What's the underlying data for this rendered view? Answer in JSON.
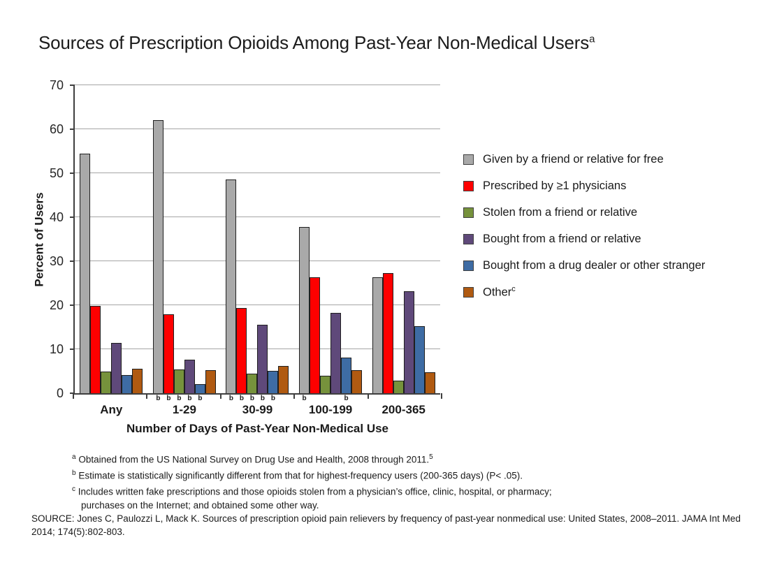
{
  "title": {
    "text": "Sources of Prescription Opioids Among Past-Year Non-Medical Users",
    "superscript": "a"
  },
  "chart_data": {
    "type": "bar",
    "title": "Sources of Prescription Opioids Among Past-Year Non-Medical Users",
    "xlabel": "Number of Days of Past-Year Non-Medical Use",
    "ylabel": "Percent of Users",
    "ylim": [
      0,
      70
    ],
    "yticks": [
      0,
      10,
      20,
      30,
      40,
      50,
      60,
      70
    ],
    "grid": true,
    "legend_position": "right",
    "categories": [
      "Any",
      "1-29",
      "30-99",
      "100-199",
      "200-365"
    ],
    "significance_marker": "b",
    "series": [
      {
        "name": "Given by a friend or relative for free",
        "color": "#a9a9a9",
        "values": [
          54.5,
          62.0,
          48.5,
          37.8,
          26.3
        ],
        "b_flags": [
          false,
          true,
          true,
          true,
          false
        ]
      },
      {
        "name": "Prescribed by ≥1 physicians",
        "color": "#fe0000",
        "values": [
          19.8,
          17.9,
          19.4,
          26.4,
          27.3
        ],
        "b_flags": [
          false,
          true,
          true,
          false,
          false
        ]
      },
      {
        "name": "Stolen from a friend or relative",
        "color": "#76923c",
        "values": [
          4.9,
          5.4,
          4.5,
          3.9,
          2.8
        ],
        "b_flags": [
          false,
          true,
          true,
          false,
          false
        ]
      },
      {
        "name": "Bought from a friend or relative",
        "color": "#5f497a",
        "values": [
          11.4,
          7.7,
          15.6,
          18.3,
          23.2
        ],
        "b_flags": [
          false,
          true,
          true,
          false,
          false
        ]
      },
      {
        "name": "Bought from a drug dealer or other stranger",
        "color": "#3e6ca4",
        "values": [
          4.2,
          2.0,
          5.1,
          8.1,
          15.2
        ],
        "b_flags": [
          false,
          true,
          true,
          true,
          false
        ]
      },
      {
        "name": "Other",
        "name_superscript": "c",
        "color": "#b05a11",
        "values": [
          5.5,
          5.3,
          6.2,
          5.2,
          4.8
        ],
        "b_flags": [
          false,
          false,
          false,
          false,
          false
        ]
      }
    ]
  },
  "footnotes": [
    {
      "marker": "a",
      "text": "Obtained from the US National Survey on Drug Use and Health, 2008 through 2011.",
      "tail_superscript": "5"
    },
    {
      "marker": "b",
      "text": "Estimate is statistically significantly different from that for highest-frequency users (200-365 days) (P< .05)."
    },
    {
      "marker": "c",
      "text": "Includes written fake prescriptions and those opioids stolen from a physician’s office, clinic, hospital, or pharmacy; purchases on the Internet; and obtained some other way."
    }
  ],
  "source": "SOURCE: Jones C, Paulozzi L, Mack K. Sources of prescription opioid pain relievers by frequency of past-year nonmedical use: United States, 2008–2011. JAMA Int Med 2014; 174(5):802-803."
}
